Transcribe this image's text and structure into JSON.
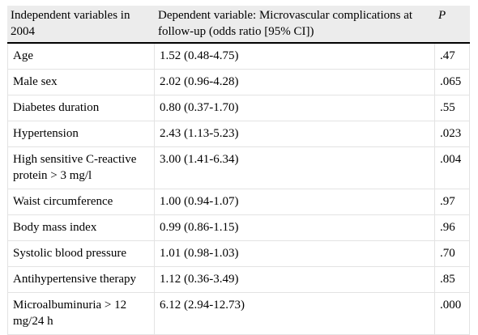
{
  "table": {
    "headers": [
      "Independent variables in 2004",
      "Dependent variable: Microvascular complications at follow-up (odds ratio [95% CI])",
      "P"
    ],
    "rows": [
      {
        "variable": "Age",
        "odds_ratio": "1.52 (0.48-4.75)",
        "p": ".47"
      },
      {
        "variable": "Male sex",
        "odds_ratio": "2.02 (0.96-4.28)",
        "p": ".065"
      },
      {
        "variable": "Diabetes duration",
        "odds_ratio": "0.80 (0.37-1.70)",
        "p": ".55"
      },
      {
        "variable": "Hypertension",
        "odds_ratio": "2.43 (1.13-5.23)",
        "p": ".023"
      },
      {
        "variable": "High sensitive C-reactive protein > 3 mg/l",
        "odds_ratio": "3.00 (1.41-6.34)",
        "p": ".004"
      },
      {
        "variable": "Waist circumference",
        "odds_ratio": "1.00 (0.94-1.07)",
        "p": ".97"
      },
      {
        "variable": "Body mass index",
        "odds_ratio": "0.99 (0.86-1.15)",
        "p": ".96"
      },
      {
        "variable": "Systolic blood pressure",
        "odds_ratio": "1.01 (0.98-1.03)",
        "p": ".70"
      },
      {
        "variable": "Antihypertensive therapy",
        "odds_ratio": "1.12 (0.36-3.49)",
        "p": ".85"
      },
      {
        "variable": "Microalbuminuria > 12 mg/24 h",
        "odds_ratio": "6.12 (2.94-12.73)",
        "p": ".000"
      }
    ]
  }
}
